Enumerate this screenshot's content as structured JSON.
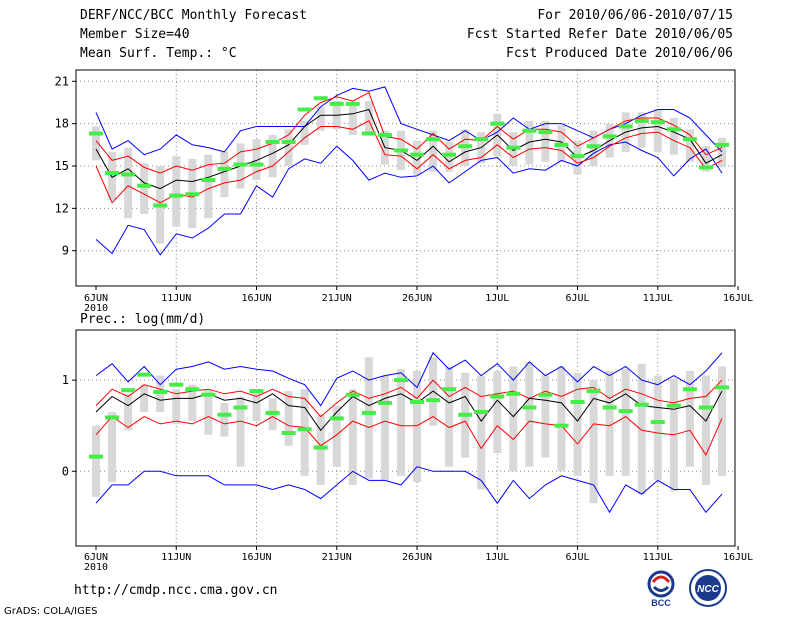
{
  "header": {
    "title": "DERF/NCC/BCC Monthly Forecast",
    "member_size": "Member Size=40",
    "variable": "Mean Surf. Temp.: °C",
    "forecast_period": "For 2010/06/06-2010/07/15",
    "start_date": "Fcst Started Refer Date 2010/06/05",
    "produced_date": "Fcst Produced Date 2010/06/06"
  },
  "footer": {
    "url": "http://cmdp.ncc.cma.gov.cn",
    "credit": "GrADS: COLA/IGES",
    "logo_left_text": "BCC",
    "logo_right_text": "NCC"
  },
  "colors": {
    "envelope": "#0000ff",
    "percentile": "#ff0000",
    "mean": "#000000",
    "box": "#d8d8d8",
    "median": "#44ee44"
  },
  "chart_data": [
    {
      "type": "box-plot-ensemble",
      "title": "Mean Surf. Temp.: °C",
      "ylabel": "Mean Surf. Temp.: °C",
      "ylim": [
        6.5,
        21.8
      ],
      "yticks": [
        9,
        12,
        15,
        18,
        21
      ],
      "xtick_labels": [
        "6JUN",
        "11JUN",
        "16JUN",
        "21JUN",
        "26JUN",
        "1JUL",
        "6JUL",
        "11JUL",
        "16JUL"
      ],
      "year_label": "2010",
      "grid": true,
      "days": 40,
      "series": [
        {
          "name": "max",
          "values": [
            18.8,
            16.2,
            16.8,
            15.8,
            16.2,
            17.2,
            16.5,
            16.3,
            16.0,
            17.5,
            17.8,
            17.8,
            17.8,
            17.8,
            19.2,
            20.0,
            20.5,
            20.3,
            20.6,
            18.0,
            17.6,
            17.2,
            16.8,
            17.5,
            16.8,
            17.4,
            18.4,
            17.6,
            18.0,
            18.0,
            17.5,
            17.0,
            17.6,
            18.0,
            18.6,
            19.0,
            19.0,
            18.4,
            17.2,
            16.0
          ]
        },
        {
          "name": "p90",
          "values": [
            16.8,
            15.4,
            15.7,
            14.9,
            14.5,
            15.0,
            14.7,
            15.1,
            15.2,
            16.0,
            16.2,
            16.6,
            17.2,
            18.6,
            19.5,
            19.9,
            19.6,
            20.2,
            17.1,
            16.9,
            16.2,
            17.3,
            16.2,
            16.9,
            16.8,
            17.8,
            16.9,
            17.6,
            17.6,
            17.4,
            16.4,
            17.0,
            17.6,
            18.2,
            18.4,
            18.4,
            17.9,
            17.2,
            15.8,
            16.3
          ]
        },
        {
          "name": "mean",
          "values": [
            16.2,
            14.2,
            14.8,
            13.8,
            13.4,
            14.0,
            13.9,
            14.2,
            14.6,
            15.0,
            15.4,
            15.9,
            16.5,
            17.8,
            18.6,
            18.6,
            18.7,
            19.0,
            16.3,
            16.1,
            15.4,
            16.4,
            15.3,
            16.0,
            16.3,
            17.2,
            16.1,
            16.7,
            16.9,
            16.7,
            15.6,
            16.1,
            16.8,
            17.4,
            17.7,
            17.8,
            17.4,
            16.9,
            15.2,
            15.8
          ]
        },
        {
          "name": "p10",
          "values": [
            15.0,
            12.4,
            13.6,
            13.0,
            12.4,
            13.0,
            12.8,
            13.4,
            13.8,
            14.0,
            14.6,
            15.0,
            16.0,
            17.0,
            17.8,
            17.8,
            17.6,
            18.2,
            15.8,
            15.7,
            14.8,
            15.8,
            14.8,
            15.4,
            15.6,
            16.5,
            15.6,
            16.2,
            16.3,
            16.1,
            15.2,
            15.6,
            16.4,
            17.0,
            17.3,
            17.4,
            16.8,
            16.3,
            14.8,
            15.4
          ]
        },
        {
          "name": "min",
          "values": [
            9.8,
            8.8,
            10.8,
            10.5,
            8.7,
            10.2,
            9.9,
            10.6,
            11.6,
            11.6,
            13.6,
            12.8,
            14.8,
            15.5,
            15.2,
            16.4,
            15.4,
            14.0,
            14.5,
            14.2,
            14.3,
            15.0,
            13.8,
            14.6,
            15.4,
            15.6,
            14.5,
            14.8,
            14.7,
            15.4,
            15.0,
            15.9,
            16.5,
            16.7,
            16.1,
            15.6,
            14.3,
            15.5,
            16.2,
            14.5
          ]
        },
        {
          "name": "box_top",
          "values": [
            17.8,
            16.0,
            16.3,
            15.2,
            15.0,
            15.7,
            15.5,
            15.8,
            16.0,
            16.6,
            16.9,
            17.2,
            17.6,
            18.2,
            19.2,
            19.6,
            19.4,
            19.6,
            17.5,
            17.5,
            16.8,
            17.5,
            16.7,
            17.6,
            17.4,
            18.7,
            17.4,
            18.2,
            18.2,
            17.9,
            16.8,
            17.5,
            18.0,
            18.8,
            18.8,
            19.0,
            18.4,
            17.6,
            16.4,
            17.0
          ]
        },
        {
          "name": "box_bottom",
          "values": [
            15.4,
            12.6,
            11.3,
            11.6,
            9.5,
            10.7,
            10.6,
            11.3,
            12.8,
            13.4,
            14.0,
            14.2,
            15.0,
            16.5,
            17.5,
            17.6,
            17.2,
            17.3,
            15.1,
            14.7,
            14.4,
            14.6,
            14.6,
            15.0,
            15.2,
            15.7,
            15.0,
            15.1,
            15.3,
            15.3,
            14.4,
            15.0,
            15.6,
            16.0,
            16.3,
            16.0,
            15.8,
            15.3,
            14.6,
            14.9
          ]
        },
        {
          "name": "median",
          "values": [
            17.3,
            14.5,
            14.4,
            13.6,
            12.2,
            12.9,
            13.0,
            14.0,
            14.8,
            15.1,
            15.1,
            16.7,
            16.7,
            19.0,
            19.8,
            19.4,
            19.4,
            17.3,
            17.2,
            16.1,
            15.8,
            16.9,
            15.8,
            16.4,
            16.9,
            18.0,
            16.3,
            17.5,
            17.4,
            16.5,
            15.7,
            16.4,
            17.1,
            17.8,
            18.2,
            18.1,
            17.6,
            16.9,
            14.9,
            16.5
          ]
        }
      ]
    },
    {
      "type": "box-plot-ensemble",
      "title": "Prec.: log(mm/d)",
      "ylabel": "Prec.: log(mm/d)",
      "ylim": [
        -0.82,
        1.55
      ],
      "yticks": [
        0,
        1
      ],
      "xtick_labels": [
        "6JUN",
        "11JUN",
        "16JUN",
        "21JUN",
        "26JUN",
        "1JUL",
        "6JUL",
        "11JUL",
        "16JUL"
      ],
      "year_label": "2010",
      "grid": true,
      "days": 40,
      "series": [
        {
          "name": "max",
          "values": [
            1.05,
            1.18,
            0.98,
            1.15,
            0.95,
            1.12,
            1.15,
            1.2,
            1.12,
            1.15,
            1.12,
            1.1,
            1.02,
            0.95,
            0.72,
            1.02,
            1.1,
            1.0,
            1.05,
            1.08,
            0.92,
            1.3,
            1.12,
            1.22,
            1.05,
            1.18,
            1.0,
            1.2,
            1.05,
            1.15,
            0.98,
            1.15,
            1.05,
            1.15,
            1.0,
            0.95,
            1.05,
            0.95,
            1.1,
            1.3
          ]
        },
        {
          "name": "p90",
          "values": [
            0.72,
            0.9,
            0.82,
            0.95,
            0.9,
            0.85,
            0.88,
            0.9,
            0.85,
            0.88,
            0.82,
            0.9,
            0.82,
            0.8,
            0.6,
            0.75,
            0.88,
            0.8,
            0.85,
            0.92,
            0.8,
            1.0,
            0.82,
            0.92,
            0.82,
            0.85,
            0.88,
            0.8,
            0.88,
            0.82,
            0.9,
            0.92,
            0.8,
            0.9,
            0.85,
            0.78,
            0.75,
            0.8,
            0.82,
            1.0
          ]
        },
        {
          "name": "mean",
          "values": [
            0.65,
            0.82,
            0.72,
            0.85,
            0.78,
            0.8,
            0.8,
            0.85,
            0.78,
            0.8,
            0.75,
            0.85,
            0.72,
            0.7,
            0.45,
            0.65,
            0.82,
            0.72,
            0.8,
            0.85,
            0.75,
            0.88,
            0.75,
            0.82,
            0.55,
            0.78,
            0.6,
            0.8,
            0.78,
            0.75,
            0.55,
            0.8,
            0.75,
            0.85,
            0.72,
            0.7,
            0.68,
            0.72,
            0.55,
            0.88
          ]
        },
        {
          "name": "p10",
          "values": [
            0.4,
            0.6,
            0.48,
            0.6,
            0.52,
            0.55,
            0.52,
            0.6,
            0.52,
            0.55,
            0.5,
            0.6,
            0.5,
            0.48,
            0.28,
            0.4,
            0.55,
            0.48,
            0.55,
            0.5,
            0.5,
            0.6,
            0.48,
            0.55,
            0.25,
            0.5,
            0.35,
            0.55,
            0.52,
            0.5,
            0.3,
            0.52,
            0.5,
            0.6,
            0.45,
            0.42,
            0.4,
            0.45,
            0.18,
            0.58
          ]
        },
        {
          "name": "min",
          "values": [
            -0.35,
            -0.15,
            -0.15,
            0.0,
            0.0,
            -0.05,
            -0.05,
            -0.05,
            -0.15,
            -0.15,
            -0.15,
            -0.2,
            -0.15,
            -0.2,
            -0.3,
            -0.15,
            0.0,
            -0.1,
            -0.1,
            -0.15,
            0.05,
            0.0,
            0.0,
            0.0,
            -0.1,
            -0.35,
            -0.1,
            -0.3,
            -0.15,
            -0.05,
            -0.1,
            -0.15,
            -0.45,
            -0.15,
            -0.25,
            -0.1,
            -0.2,
            -0.2,
            -0.45,
            -0.25
          ]
        },
        {
          "name": "box_top",
          "values": [
            0.5,
            0.65,
            0.85,
            0.95,
            1.05,
            0.9,
            0.95,
            0.9,
            0.75,
            0.82,
            0.9,
            0.8,
            0.88,
            0.9,
            0.62,
            0.72,
            0.9,
            1.25,
            1.05,
            1.12,
            1.1,
            1.25,
            1.15,
            1.08,
            1.05,
            1.1,
            1.15,
            1.2,
            1.05,
            1.15,
            1.08,
            1.0,
            1.1,
            1.12,
            1.18,
            1.05,
            1.02,
            1.1,
            1.05,
            1.15
          ]
        },
        {
          "name": "box_bottom",
          "values": [
            -0.28,
            -0.12,
            0.45,
            0.65,
            0.65,
            0.52,
            0.55,
            0.4,
            0.38,
            0.05,
            0.55,
            0.45,
            0.28,
            -0.05,
            -0.15,
            0.05,
            -0.15,
            -0.08,
            -0.1,
            -0.05,
            -0.12,
            0.5,
            0.05,
            0.15,
            -0.2,
            0.2,
            0.0,
            0.05,
            0.15,
            0.0,
            -0.05,
            -0.35,
            -0.05,
            -0.05,
            -0.25,
            -0.1,
            -0.22,
            0.05,
            -0.15,
            -0.05
          ]
        },
        {
          "name": "median",
          "values": [
            0.16,
            0.59,
            0.89,
            1.06,
            0.87,
            0.95,
            0.9,
            0.84,
            0.62,
            0.7,
            0.88,
            0.64,
            0.42,
            0.46,
            0.26,
            0.58,
            0.84,
            0.64,
            0.75,
            1.0,
            0.76,
            0.78,
            0.9,
            0.62,
            0.65,
            0.82,
            0.85,
            0.7,
            0.84,
            0.5,
            0.76,
            0.88,
            0.7,
            0.66,
            0.73,
            0.54,
            0.72,
            0.9,
            0.7,
            0.92
          ]
        }
      ]
    }
  ]
}
